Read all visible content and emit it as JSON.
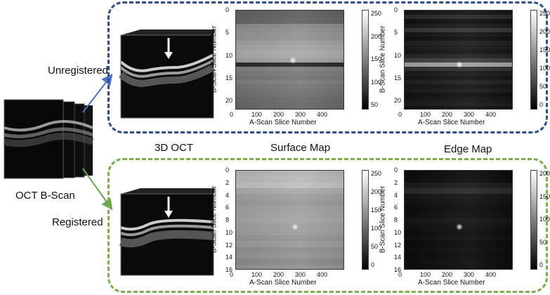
{
  "colors": {
    "unregistered_border": "#2f4f8a",
    "registered_border": "#7cae4a",
    "arrow_top": "#4a72c4",
    "arrow_bottom": "#6aa84f"
  },
  "left": {
    "oct_bscan_label": "OCT B-Scan",
    "unregistered_label": "Unregistered",
    "registered_label": "Registered"
  },
  "titles": {
    "oct3d": "3D OCT",
    "surface": "Surface Map",
    "edge": "Edge Map"
  },
  "axes": {
    "xlabel": "A-Scan Slice Number",
    "ylabel": "B-Scan Slice Number"
  },
  "icons": {
    "arrow": "down-arrow-icon"
  },
  "chart_data": [
    {
      "type": "heatmap",
      "name": "unregistered-surface",
      "xticks": [
        "0",
        "100",
        "200",
        "300",
        "400"
      ],
      "yticks": [
        "0",
        "5",
        "10",
        "15",
        "20"
      ],
      "cbar_ticks": [
        "250",
        "200",
        "150",
        "100",
        "50"
      ],
      "rows": [
        90,
        92,
        95,
        130,
        135,
        138,
        140,
        150,
        155,
        160,
        158,
        150,
        40,
        120,
        115,
        110,
        118,
        112,
        108,
        105,
        100,
        98,
        95
      ],
      "bright_spot": {
        "x": 260,
        "y": 11
      }
    },
    {
      "type": "heatmap",
      "name": "unregistered-edge",
      "xticks": [
        "0",
        "100",
        "200",
        "300",
        "400"
      ],
      "yticks": [
        "0",
        "5",
        "10",
        "15",
        "20"
      ],
      "cbar_ticks": [
        "250",
        "200",
        "150",
        "100",
        "50",
        "0"
      ],
      "rows": [
        20,
        40,
        15,
        25,
        50,
        20,
        15,
        30,
        25,
        20,
        35,
        60,
        150,
        45,
        25,
        20,
        30,
        20,
        25,
        15,
        20,
        25,
        15
      ],
      "bright_spot": {
        "x": 250,
        "y": 12
      }
    },
    {
      "type": "heatmap",
      "name": "registered-surface",
      "xticks": [
        "0",
        "100",
        "200",
        "300",
        "400"
      ],
      "yticks": [
        "0",
        "2",
        "4",
        "6",
        "8",
        "10",
        "12",
        "14",
        "16"
      ],
      "cbar_ticks": [
        "250",
        "200",
        "150",
        "100",
        "50",
        "0"
      ],
      "rows": [
        170,
        175,
        180,
        160,
        150,
        145,
        150,
        152,
        155,
        150,
        148,
        140,
        145,
        135,
        140,
        130,
        138
      ],
      "bright_spot": {
        "x": 270,
        "y": 9
      }
    },
    {
      "type": "heatmap",
      "name": "registered-edge",
      "xticks": [
        "0",
        "100",
        "200",
        "300",
        "400"
      ],
      "yticks": [
        "0",
        "2",
        "4",
        "6",
        "8",
        "10",
        "12",
        "14",
        "16"
      ],
      "cbar_ticks": [
        "200",
        "150",
        "100",
        "50",
        "0"
      ],
      "rows": [
        10,
        12,
        25,
        40,
        18,
        15,
        12,
        14,
        20,
        15,
        12,
        14,
        10,
        12,
        10,
        12,
        10
      ],
      "bright_spot": {
        "x": 250,
        "y": 9
      }
    }
  ]
}
